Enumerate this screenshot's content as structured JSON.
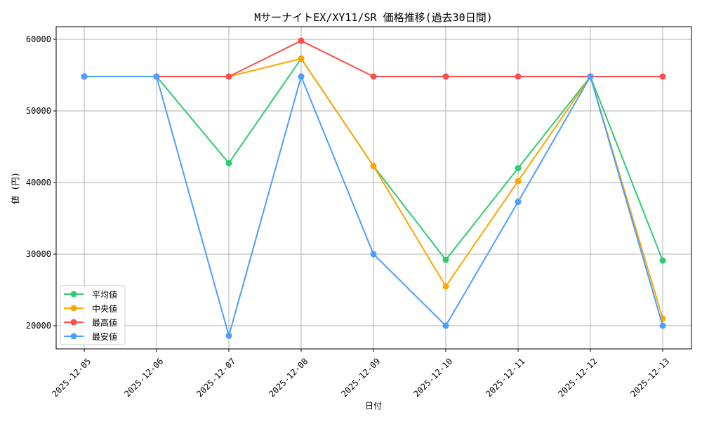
{
  "chart_data": {
    "type": "line",
    "title": "Mサーナイトex/XY11/SR 価格推移(過去30日間)",
    "title_display": "MサーナイトEX/XY11/SR 価格推移(過去30日間)",
    "xlabel": "日付",
    "ylabel": "値 (円)",
    "categories": [
      "2025-12-05",
      "2025-12-06",
      "2025-12-07",
      "2025-12-08",
      "2025-12-09",
      "2025-12-10",
      "2025-12-11",
      "2025-12-12",
      "2025-12-13"
    ],
    "ylim": [
      16765,
      61765
    ],
    "yticks": [
      20000,
      30000,
      40000,
      50000,
      60000
    ],
    "grid": true,
    "legend_position": "bottom-left",
    "series": [
      {
        "name": "平均値",
        "color": "#2ecc71",
        "values": [
          54800,
          54800,
          42700,
          57300,
          42300,
          29200,
          42000,
          54800,
          29100
        ]
      },
      {
        "name": "中央値",
        "color": "#ffa500",
        "values": [
          54800,
          54800,
          54800,
          57300,
          42300,
          25500,
          40200,
          54800,
          21000
        ]
      },
      {
        "name": "最高値",
        "color": "#ff4d4d",
        "values": [
          54800,
          54800,
          54800,
          59800,
          54800,
          54800,
          54800,
          54800,
          54800
        ]
      },
      {
        "name": "最安値",
        "color": "#4d9fff",
        "values": [
          54800,
          54800,
          18600,
          54800,
          30000,
          20000,
          37300,
          54800,
          20000
        ]
      }
    ]
  }
}
